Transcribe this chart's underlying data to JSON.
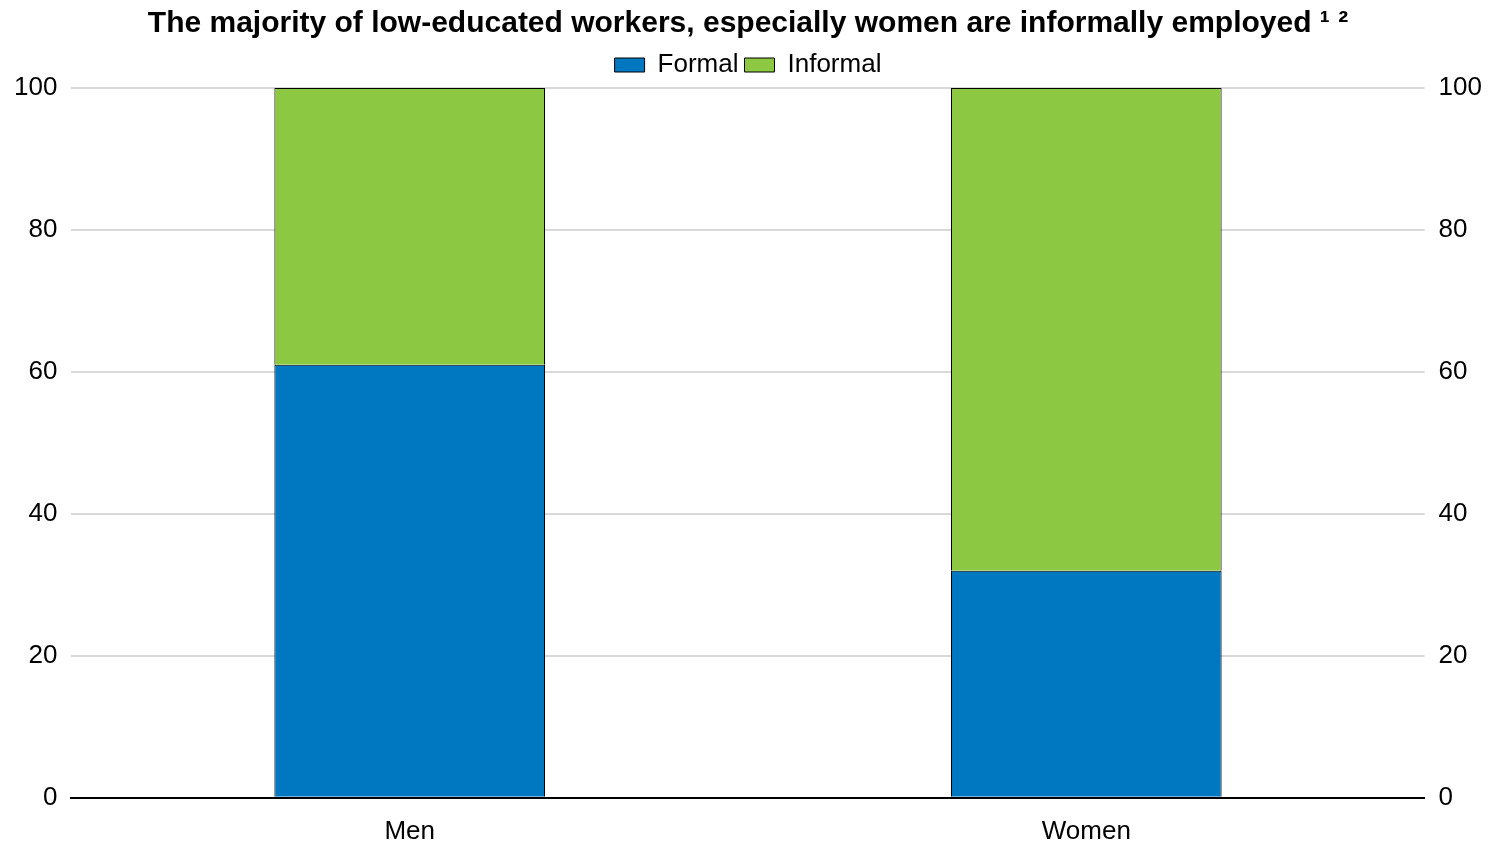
{
  "chart_data": {
    "type": "bar",
    "title": "The majority of low-educated workers, especially women are informally employed ¹ ²",
    "categories": [
      "Men",
      "Women"
    ],
    "series": [
      {
        "name": "Formal",
        "color": "#0078c1",
        "values": [
          61,
          32
        ]
      },
      {
        "name": "Informal",
        "color": "#8cc841",
        "values": [
          39,
          68
        ]
      }
    ],
    "stacked": true,
    "ylim": [
      0,
      100
    ],
    "yticks": [
      0,
      20,
      40,
      60,
      80,
      100
    ],
    "y2lim": [
      0,
      100
    ],
    "y2ticks": [
      0,
      20,
      40,
      60,
      80,
      100
    ],
    "grid": "y",
    "legend": "top"
  }
}
